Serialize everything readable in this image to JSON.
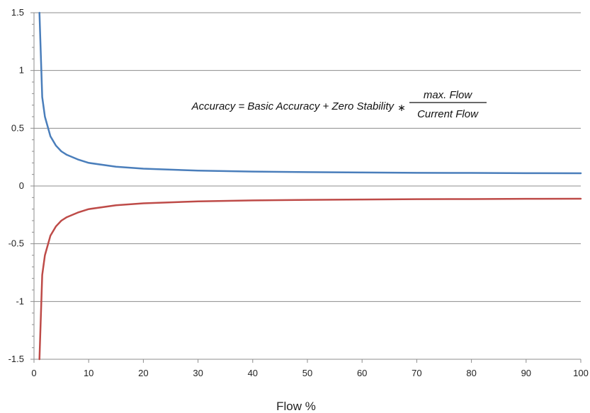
{
  "chart_data": {
    "type": "line",
    "title": "",
    "xlabel": "Flow %",
    "ylabel": "",
    "xlim": [
      0,
      100
    ],
    "ylim": [
      -1.5,
      1.5
    ],
    "x_ticks": [
      0,
      10,
      20,
      30,
      40,
      50,
      60,
      70,
      80,
      90,
      100
    ],
    "y_ticks": [
      {
        "value": 1.5,
        "label": "1.5"
      },
      {
        "value": 1,
        "label": "1"
      },
      {
        "value": 0.5,
        "label": "0.5"
      },
      {
        "value": 0,
        "label": "0"
      },
      {
        "value": -0.5,
        "label": "-0.5"
      },
      {
        "value": -1,
        "label": "-1"
      },
      {
        "value": -1.5,
        "label": "-1.5"
      }
    ],
    "grid": {
      "horizontal": true,
      "vertical": false
    },
    "formula": {
      "lhs": "Accuracy = Basic Accuracy + Zero Stability",
      "operator": "∗",
      "numerator": "max. Flow",
      "denominator": "Current Flow"
    },
    "series": [
      {
        "color": "#4A7EBB",
        "x": [
          1.0,
          1.5,
          2,
          3,
          4,
          5,
          6,
          8,
          10,
          15,
          20,
          30,
          40,
          50,
          60,
          70,
          80,
          90,
          100
        ],
        "y": [
          1.5,
          0.77,
          0.6,
          0.43,
          0.35,
          0.3,
          0.27,
          0.23,
          0.2,
          0.167,
          0.15,
          0.133,
          0.125,
          0.12,
          0.117,
          0.114,
          0.113,
          0.111,
          0.11
        ]
      },
      {
        "color": "#BE4B48",
        "x": [
          1.0,
          1.5,
          2,
          3,
          4,
          5,
          6,
          8,
          10,
          15,
          20,
          30,
          40,
          50,
          60,
          70,
          80,
          90,
          100
        ],
        "y": [
          -1.5,
          -0.77,
          -0.6,
          -0.43,
          -0.35,
          -0.3,
          -0.27,
          -0.23,
          -0.2,
          -0.167,
          -0.15,
          -0.133,
          -0.125,
          -0.12,
          -0.117,
          -0.114,
          -0.113,
          -0.111,
          -0.11
        ]
      }
    ]
  }
}
